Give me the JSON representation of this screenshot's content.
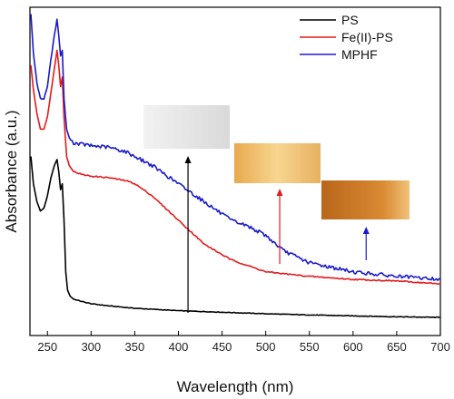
{
  "chart_data": {
    "type": "line",
    "title": "",
    "xlabel": "Wavelength (nm)",
    "ylabel": "Absorbance (a.u.)",
    "xlim": [
      230,
      700
    ],
    "ylim": [
      0,
      1
    ],
    "x_ticks": [
      250,
      300,
      350,
      400,
      450,
      500,
      550,
      600,
      650,
      700
    ],
    "y_tick_labels_shown": false,
    "legend_position": "top-right",
    "series": [
      {
        "name": "PS",
        "color": "#000000",
        "x": [
          231,
          234,
          238,
          242,
          246,
          250,
          254,
          258,
          261,
          263,
          265,
          267,
          269,
          271,
          273,
          276,
          280,
          290,
          300,
          320,
          350,
          400,
          450,
          500,
          550,
          600,
          650,
          700
        ],
        "y": [
          0.53,
          0.44,
          0.38,
          0.35,
          0.36,
          0.4,
          0.46,
          0.5,
          0.52,
          0.48,
          0.42,
          0.44,
          0.32,
          0.15,
          0.09,
          0.07,
          0.06,
          0.052,
          0.045,
          0.038,
          0.03,
          0.022,
          0.017,
          0.012,
          0.008,
          0.005,
          0.002,
          0.0
        ]
      },
      {
        "name": "Fe(II)-PS",
        "color": "#e41a1c",
        "x": [
          231,
          234,
          238,
          242,
          246,
          250,
          254,
          258,
          261,
          263,
          265,
          267,
          269,
          272,
          275,
          280,
          290,
          300,
          320,
          340,
          350,
          370,
          400,
          430,
          460,
          500,
          550,
          600,
          650,
          700
        ],
        "y": [
          0.83,
          0.75,
          0.67,
          0.62,
          0.62,
          0.66,
          0.74,
          0.82,
          0.88,
          0.83,
          0.76,
          0.79,
          0.66,
          0.53,
          0.5,
          0.48,
          0.47,
          0.465,
          0.46,
          0.45,
          0.44,
          0.4,
          0.32,
          0.24,
          0.19,
          0.15,
          0.135,
          0.125,
          0.12,
          0.11
        ]
      },
      {
        "name": "MPHF",
        "color": "#1a1acc",
        "x": [
          231,
          234,
          238,
          242,
          246,
          250,
          254,
          258,
          261,
          263,
          265,
          267,
          269,
          272,
          275,
          280,
          290,
          300,
          320,
          340,
          350,
          370,
          400,
          430,
          460,
          480,
          500,
          520,
          550,
          600,
          650,
          700
        ],
        "y": [
          1.0,
          0.87,
          0.77,
          0.72,
          0.72,
          0.76,
          0.85,
          0.93,
          0.98,
          0.93,
          0.86,
          0.88,
          0.72,
          0.62,
          0.59,
          0.575,
          0.57,
          0.565,
          0.56,
          0.545,
          0.53,
          0.5,
          0.44,
          0.38,
          0.32,
          0.3,
          0.27,
          0.22,
          0.18,
          0.15,
          0.135,
          0.125
        ]
      }
    ],
    "annotations": [
      {
        "kind": "sample-photo",
        "name": "PS film",
        "colors": [
          "#f2f2f2",
          "#d9d9d9"
        ],
        "arrow_color": "#000000",
        "arrow_x": 411
      },
      {
        "kind": "sample-photo",
        "name": "Fe(II)-PS film",
        "colors": [
          "#f7d690",
          "#e8a94e"
        ],
        "arrow_color": "#e41a1c",
        "arrow_x": 516
      },
      {
        "kind": "sample-photo",
        "name": "MPHF film",
        "colors": [
          "#d98a32",
          "#b8661a"
        ],
        "arrow_color": "#1a1acc",
        "arrow_x": 615
      }
    ]
  }
}
